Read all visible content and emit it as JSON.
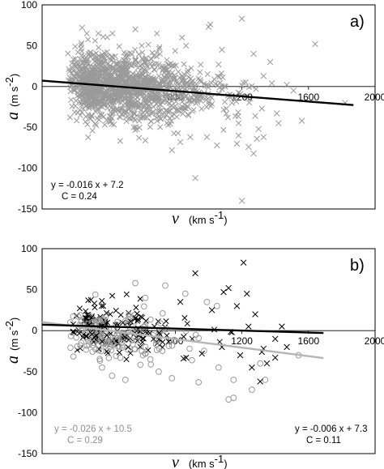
{
  "chart_data": [
    {
      "type": "scatter",
      "panel_label": "a)",
      "xlim": [
        0,
        2000
      ],
      "ylim": [
        -150,
        100
      ],
      "x_ticks": [
        0,
        400,
        800,
        1200,
        1600,
        2000
      ],
      "y_ticks": [
        100,
        50,
        0,
        -50,
        -100,
        -150
      ],
      "x_tick_labels": [
        "",
        "400",
        "800",
        "1200",
        "1600",
        "2000"
      ],
      "y_tick_labels": [
        "100",
        "50",
        "0",
        "-50",
        "-100",
        "-150"
      ],
      "xlabel": {
        "symbol": "v",
        "unit": "(km s",
        "unit_exp": "-1",
        "unit_close": ")"
      },
      "ylabel": {
        "symbol": "a",
        "unit": "(m s",
        "unit_exp": "-2",
        "unit_close": ")"
      },
      "series": [
        {
          "marker": "x",
          "color": "#9a9a9a",
          "points": [
            [
              240,
              72
            ],
            [
              560,
              70
            ],
            [
              1000,
              73
            ],
            [
              1010,
              76
            ],
            [
              1200,
              83
            ],
            [
              1640,
              52
            ],
            [
              1330,
              -62
            ],
            [
              1270,
              -82
            ],
            [
              1200,
              -140
            ],
            [
              920,
              -112
            ],
            [
              1180,
              -60
            ],
            [
              1300,
              -52
            ],
            [
              1420,
              -45
            ],
            [
              1270,
              40
            ],
            [
              1370,
              30
            ],
            [
              1170,
              -70
            ],
            [
              1240,
              -74
            ],
            [
              1560,
              -42
            ],
            [
              1380,
              4
            ],
            [
              1320,
              -27
            ],
            [
              1510,
              -5
            ],
            [
              1410,
              -33
            ],
            [
              1820,
              -20
            ],
            [
              830,
              -68
            ],
            [
              780,
              -78
            ],
            [
              620,
              -66
            ],
            [
              890,
              -62
            ],
            [
              1050,
              -72
            ],
            [
              990,
              -62
            ],
            [
              1280,
              -36
            ],
            [
              1080,
              45
            ],
            [
              1180,
              -45
            ],
            [
              1330,
              13
            ],
            [
              1250,
              -15
            ],
            [
              1140,
              -20
            ],
            [
              1290,
              -64
            ],
            [
              1060,
              27
            ],
            [
              1470,
              2
            ]
          ]
        }
      ],
      "fits": [
        {
          "color": "#000000",
          "equation": "y = -0.016 x + 7.2",
          "corr": "C = 0.24",
          "x_range": [
            0,
            1870
          ],
          "slope": -0.016,
          "intercept": 7.2
        }
      ]
    },
    {
      "type": "scatter",
      "panel_label": "b)",
      "xlim": [
        0,
        2000
      ],
      "ylim": [
        -150,
        100
      ],
      "x_ticks": [
        0,
        400,
        800,
        1200,
        1600,
        2000
      ],
      "y_ticks": [
        100,
        50,
        0,
        -50,
        -100,
        -150
      ],
      "x_tick_labels": [
        "",
        "400",
        "800",
        "1200",
        "1600",
        "2000"
      ],
      "y_tick_labels": [
        "100",
        "50",
        "0",
        "-50",
        "-100",
        "-150"
      ],
      "xlabel": {
        "symbol": "v",
        "unit": "(km s",
        "unit_exp": "-1",
        "unit_close": ")"
      },
      "ylabel": {
        "symbol": "a",
        "unit": "(m s",
        "unit_exp": "-2",
        "unit_close": ")"
      },
      "series": [
        {
          "marker": "circle",
          "color": "#9a9a9a",
          "points": [
            [
              560,
              58
            ],
            [
              740,
              55
            ],
            [
              320,
              44
            ],
            [
              620,
              40
            ],
            [
              860,
              45
            ],
            [
              990,
              35
            ],
            [
              1050,
              30
            ],
            [
              420,
              -55
            ],
            [
              500,
              -60
            ],
            [
              700,
              -50
            ],
            [
              780,
              -58
            ],
            [
              940,
              -63
            ],
            [
              1150,
              -60
            ],
            [
              1120,
              -84
            ],
            [
              1150,
              -82
            ],
            [
              1260,
              -72
            ],
            [
              1340,
              -60
            ],
            [
              1540,
              -30
            ],
            [
              1310,
              -40
            ],
            [
              1060,
              -45
            ],
            [
              360,
              -45
            ],
            [
              470,
              -33
            ],
            [
              650,
              -35
            ],
            [
              900,
              -36
            ]
          ]
        },
        {
          "marker": "x",
          "color": "#000000",
          "points": [
            [
              1210,
              83
            ],
            [
              920,
              70
            ],
            [
              1090,
              47
            ],
            [
              1120,
              52
            ],
            [
              1230,
              45
            ],
            [
              830,
              35
            ],
            [
              1020,
              25
            ],
            [
              1170,
              30
            ],
            [
              1280,
              20
            ],
            [
              1190,
              -30
            ],
            [
              1260,
              -45
            ],
            [
              1350,
              -40
            ],
            [
              1330,
              -22
            ],
            [
              1400,
              -10
            ],
            [
              1440,
              5
            ],
            [
              1470,
              -20
            ],
            [
              1400,
              -33
            ],
            [
              1310,
              -62
            ],
            [
              1320,
              -26
            ],
            [
              850,
              -34
            ],
            [
              1080,
              -20
            ],
            [
              1140,
              -2
            ],
            [
              1240,
              5
            ],
            [
              960,
              -28
            ]
          ]
        }
      ],
      "fits": [
        {
          "color": "#b5b5b5",
          "equation": "y = -0.026 x + 10.5",
          "corr": "C = 0.29",
          "x_range": [
            0,
            1690
          ],
          "slope": -0.026,
          "intercept": 10.5
        },
        {
          "color": "#000000",
          "equation": "y = -0.006 x + 7.3",
          "corr": "C = 0.11",
          "x_range": [
            0,
            1690
          ],
          "slope": -0.006,
          "intercept": 7.3
        }
      ]
    }
  ]
}
